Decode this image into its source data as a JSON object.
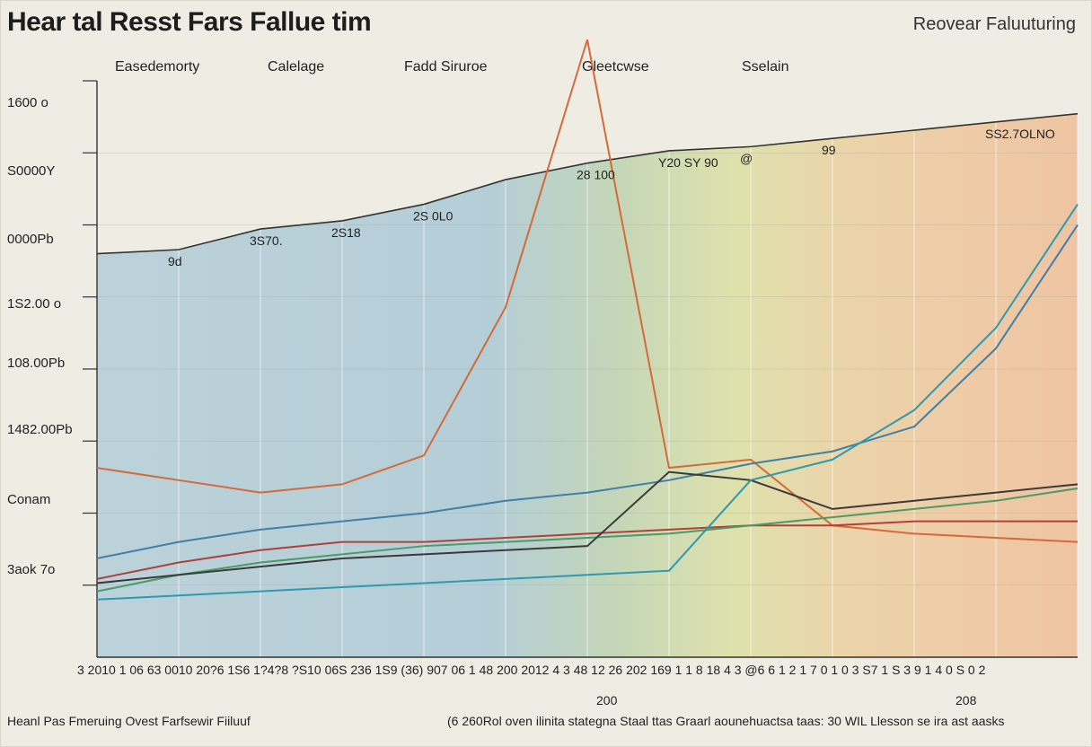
{
  "header": {
    "title": "Hear tal Resst Fars Fallue tim",
    "right_label": "Reovear Faluuturing"
  },
  "band_labels": [
    "Easedemorty",
    "Calelage",
    "Fadd Siruroe",
    "Gleetcwse",
    "Sselain"
  ],
  "footer": {
    "left": "Heanl Pas Fmeruing Ovest Farfsewir Fiiluuf",
    "right": "(6 260Rol oven ilinita stategna Staal ttas Graarl aounehuactsa taas: 30 WIL Llesson se ira ast aasks",
    "mid_labels": [
      "200",
      "208"
    ]
  },
  "x_tick_text": "3 2010 1    06 63 0010 20?6 1S6 1?4?8 ?S10 06S 236  1S9 (36) 907 06 1 48  200      2012  4 3  48 12 26 202 169 1 1 8 18 4 3 @6 6 1 2  1 7 0 1 0 3 S7 1 S 3 9  1 4 0  S 0  2",
  "colors": {
    "band_blue": "#b8cfd8",
    "band_green": "#c8d7a8",
    "band_yellow": "#e8dd9c",
    "band_orange": "#efc3a0",
    "line_orange": "#d46a3a",
    "line_blue": "#3f7fa8",
    "line_red": "#b0413a",
    "line_green": "#4a9a6a",
    "line_dark": "#3a3a3a",
    "line_teal": "#2d9ab0"
  },
  "chart_data": {
    "type": "line",
    "title": "Hear tal Resst Fars Fallue tim",
    "y_tick_labels": [
      "1600 o",
      "S0000Y",
      "0000Pb",
      "1S2.00 o",
      "108.00Pb",
      "1482.00Pb",
      "Conam",
      "3aok 7o"
    ],
    "top_tags": [
      "9d",
      "3S70.",
      "2S18",
      "2S 0L0",
      "28 100",
      "Y20 SY 90",
      "@",
      "99",
      "SS2.7OLNO"
    ],
    "x": [
      0,
      1,
      2,
      3,
      4,
      5,
      6,
      7,
      8,
      9,
      10,
      11,
      12
    ],
    "series": [
      {
        "color": "line_orange",
        "values": [
          4.6,
          4.3,
          4.0,
          4.2,
          4.9,
          8.5,
          15.0,
          4.6,
          4.8,
          3.2,
          3.0,
          2.9,
          2.8
        ]
      },
      {
        "color": "line_blue",
        "values": [
          2.4,
          2.8,
          3.1,
          3.3,
          3.5,
          3.8,
          4.0,
          4.3,
          4.7,
          5.0,
          5.6,
          7.5,
          10.5
        ]
      },
      {
        "color": "line_red",
        "values": [
          1.9,
          2.3,
          2.6,
          2.8,
          2.8,
          2.9,
          3.0,
          3.1,
          3.2,
          3.2,
          3.3,
          3.3,
          3.3
        ]
      },
      {
        "color": "line_green",
        "values": [
          1.6,
          2.0,
          2.3,
          2.5,
          2.7,
          2.8,
          2.9,
          3.0,
          3.2,
          3.4,
          3.6,
          3.8,
          4.1
        ]
      },
      {
        "color": "line_dark",
        "values": [
          1.8,
          2.0,
          2.2,
          2.4,
          2.5,
          2.6,
          2.7,
          4.5,
          4.3,
          3.6,
          3.8,
          4.0,
          4.2
        ]
      },
      {
        "color": "line_teal",
        "values": [
          1.4,
          1.5,
          1.6,
          1.7,
          1.8,
          1.9,
          2.0,
          2.1,
          4.3,
          4.8,
          6.0,
          8.0,
          11.0
        ]
      }
    ],
    "top_line": [
      9.8,
      9.9,
      10.4,
      10.6,
      11.0,
      11.6,
      12.0,
      12.3,
      12.4,
      12.6,
      12.8,
      13.0,
      13.2
    ],
    "ylim": [
      0,
      14
    ]
  }
}
